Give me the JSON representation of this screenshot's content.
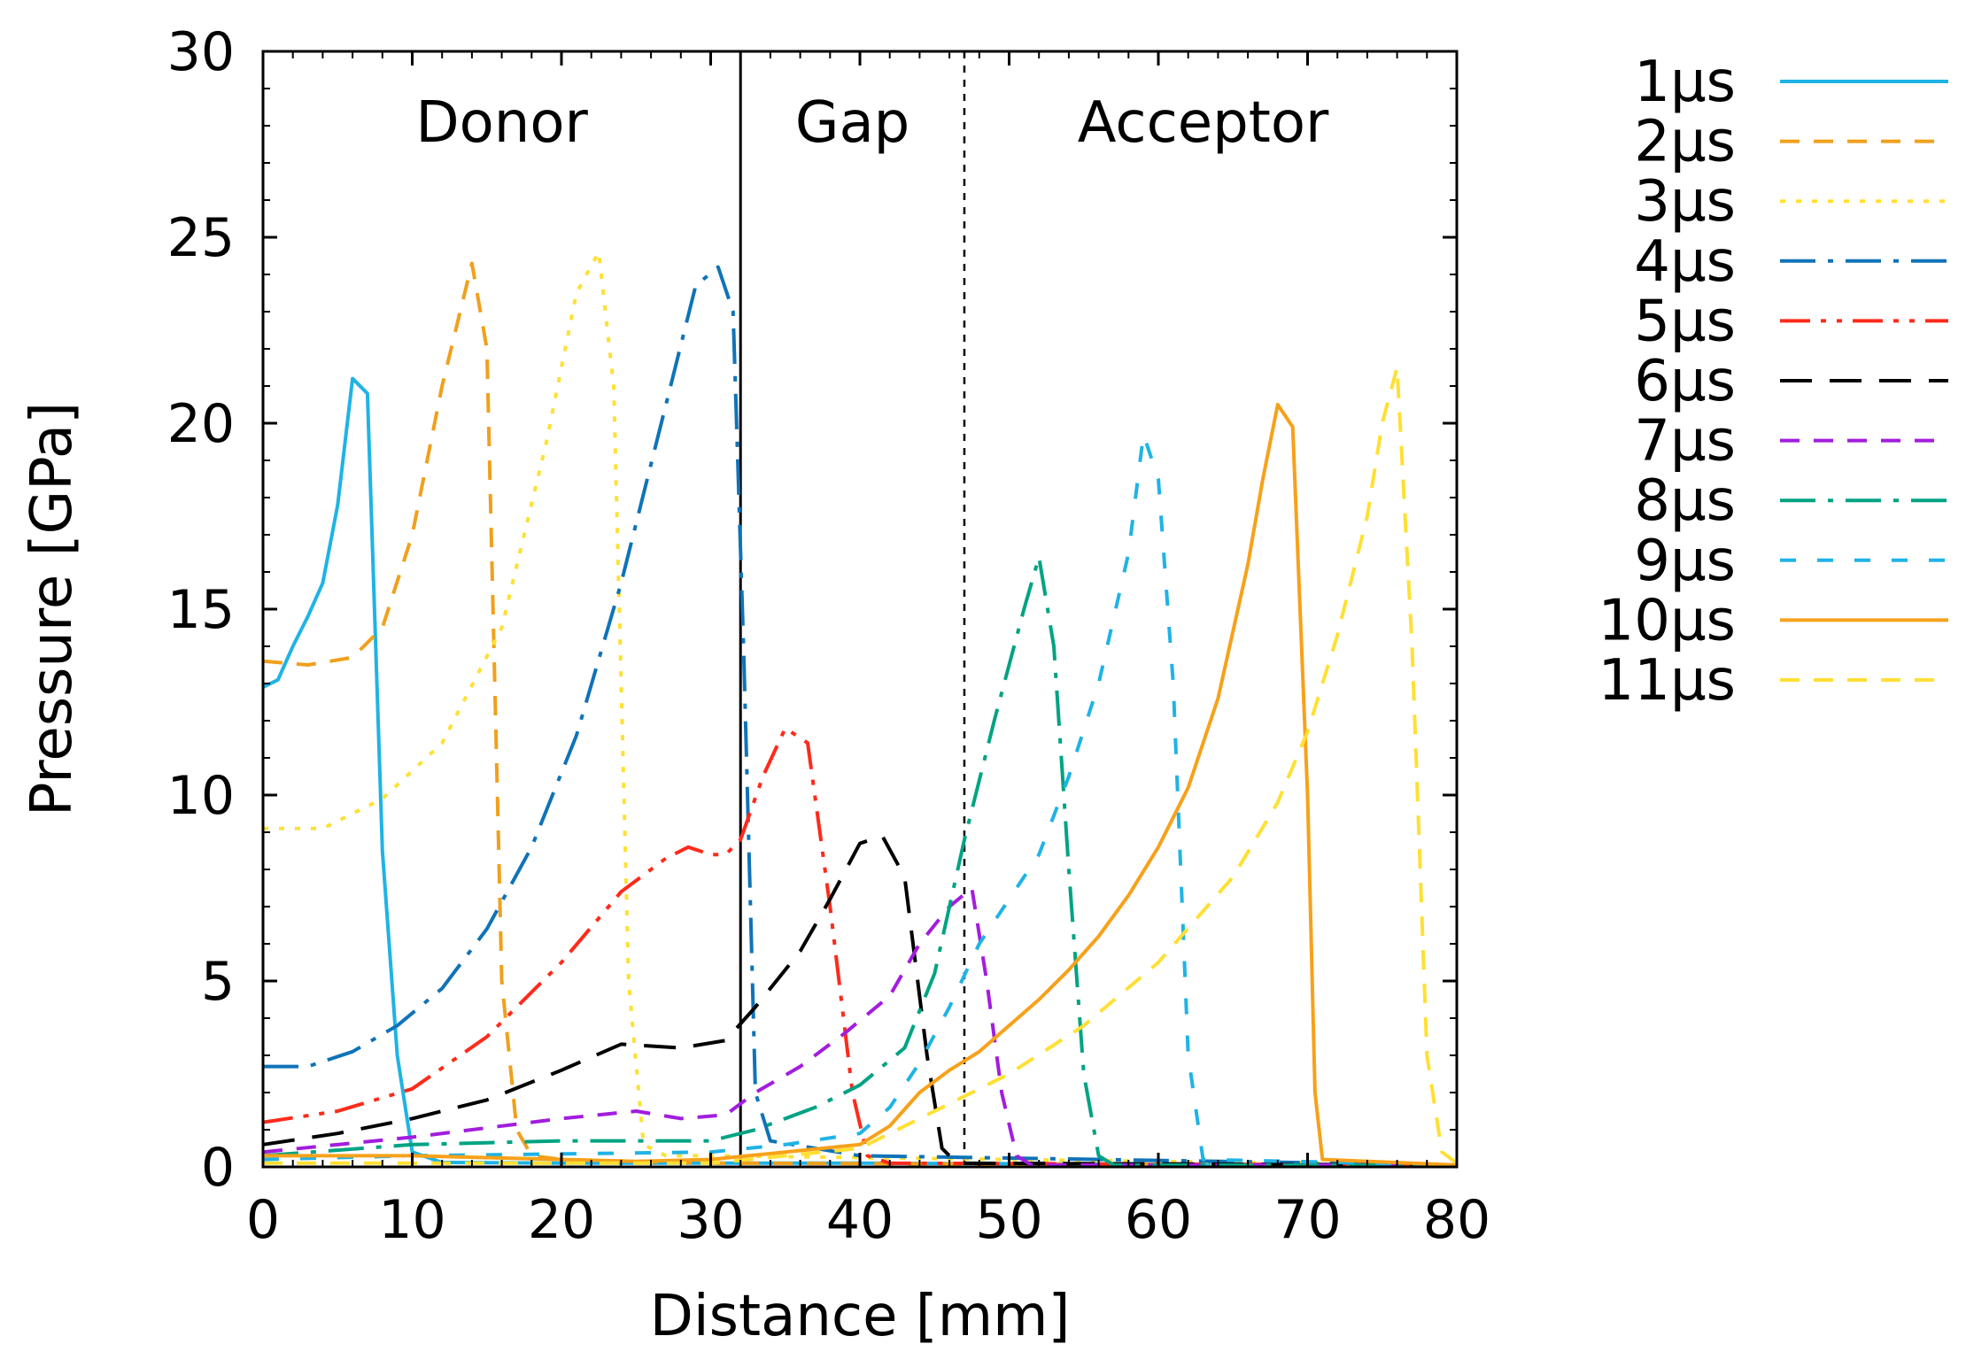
{
  "chart_data": {
    "type": "line",
    "title": "",
    "xlabel": "Distance [mm]",
    "ylabel": "Pressure [GPa]",
    "xlim": [
      0,
      80
    ],
    "ylim": [
      0,
      30
    ],
    "xticks": [
      0,
      10,
      20,
      30,
      40,
      50,
      60,
      70,
      80
    ],
    "yticks": [
      0,
      5,
      10,
      15,
      20,
      25,
      30
    ],
    "regions": [
      {
        "label": "Donor",
        "x": 16
      },
      {
        "label": "Gap",
        "x": 39.5
      },
      {
        "label": "Acceptor",
        "x": 63
      }
    ],
    "boundaries": [
      {
        "x": 32,
        "style": "solid"
      },
      {
        "x": 47,
        "style": "dotted"
      }
    ],
    "legend_position": "outside-right",
    "series": [
      {
        "name": "1μs",
        "color": "#1fb3e5",
        "dash": "solid",
        "x": [
          0,
          1,
          2,
          3,
          4,
          5,
          6,
          7,
          8,
          9,
          10,
          12,
          20,
          30,
          40,
          80
        ],
        "y": [
          12.9,
          13.1,
          14.0,
          14.8,
          15.7,
          17.8,
          21.2,
          20.8,
          8.5,
          3.0,
          0.4,
          0.12,
          0.1,
          0.1,
          0.1,
          0.05
        ]
      },
      {
        "name": "2μs",
        "color": "#f0a01c",
        "dash": "dash",
        "x": [
          0,
          3,
          6,
          8,
          10,
          12,
          14,
          15,
          16,
          17,
          18,
          20,
          30,
          80
        ],
        "y": [
          13.6,
          13.5,
          13.7,
          14.5,
          17.0,
          21.0,
          24.3,
          22.0,
          5.0,
          1.0,
          0.3,
          0.2,
          0.1,
          0.05
        ]
      },
      {
        "name": "3μs",
        "color": "#ffe033",
        "dash": "dot",
        "x": [
          0,
          4,
          8,
          12,
          16,
          19,
          21,
          22.5,
          23.5,
          24.5,
          25.5,
          27,
          30,
          80
        ],
        "y": [
          9.1,
          9.1,
          9.9,
          11.4,
          14.5,
          19.5,
          23.5,
          24.6,
          21.0,
          5.0,
          0.6,
          0.3,
          0.3,
          0.05
        ]
      },
      {
        "name": "4μs",
        "color": "#0f73b8",
        "dash": "dashdot",
        "x": [
          0,
          3,
          6,
          9,
          12,
          15,
          18,
          21,
          24,
          27,
          29,
          30.5,
          31.5,
          32.2,
          33,
          34,
          40,
          80
        ],
        "y": [
          2.7,
          2.7,
          3.1,
          3.8,
          4.8,
          6.4,
          8.6,
          11.6,
          15.7,
          20.5,
          23.7,
          24.2,
          23.0,
          14.0,
          2.0,
          0.7,
          0.3,
          0.05
        ]
      },
      {
        "name": "5μs",
        "color": "#ff2a1a",
        "dash": "dashdotdot",
        "x": [
          0,
          5,
          10,
          15,
          20,
          24,
          27,
          28.5,
          30,
          31,
          32,
          33.5,
          35,
          36.5,
          38,
          39.5,
          40.5,
          42,
          80
        ],
        "y": [
          1.2,
          1.5,
          2.1,
          3.5,
          5.5,
          7.4,
          8.3,
          8.6,
          8.4,
          8.4,
          8.8,
          10.5,
          11.8,
          11.4,
          7.0,
          2.0,
          0.3,
          0.1,
          0.05
        ]
      },
      {
        "name": "6μs",
        "color": "#000000",
        "dash": "longdash",
        "x": [
          0,
          5,
          10,
          15,
          20,
          24,
          28,
          31,
          33,
          36,
          38,
          40,
          41.5,
          43,
          44.5,
          45.5,
          46.5,
          80
        ],
        "y": [
          0.6,
          0.9,
          1.3,
          1.8,
          2.6,
          3.3,
          3.2,
          3.4,
          4.3,
          5.8,
          7.2,
          8.7,
          8.9,
          7.8,
          3.0,
          0.5,
          0.1,
          0.05
        ]
      },
      {
        "name": "7μs",
        "color": "#a21dde",
        "dash": "dash",
        "x": [
          0,
          10,
          20,
          25,
          28,
          31,
          33,
          36,
          39,
          42,
          44,
          46,
          47.5,
          48.5,
          49.5,
          50.5,
          51.5,
          80
        ],
        "y": [
          0.4,
          0.8,
          1.3,
          1.5,
          1.3,
          1.4,
          2.0,
          2.7,
          3.6,
          4.6,
          6.0,
          7.0,
          7.5,
          5.0,
          2.0,
          0.3,
          0.05,
          0.05
        ]
      },
      {
        "name": "8μs",
        "color": "#00a383",
        "dash": "dashdot",
        "x": [
          0,
          10,
          20,
          30,
          33,
          37,
          40,
          43,
          45,
          47,
          49,
          51,
          52,
          53,
          54,
          55,
          56,
          57,
          80
        ],
        "y": [
          0.3,
          0.6,
          0.7,
          0.7,
          1.0,
          1.6,
          2.2,
          3.2,
          5.2,
          8.8,
          12.0,
          15.0,
          16.4,
          14.0,
          8.0,
          2.5,
          0.3,
          0.05,
          0.05
        ]
      },
      {
        "name": "9μs",
        "color": "#1fb3e5",
        "dash": "shortdash",
        "x": [
          0,
          10,
          20,
          30,
          35,
          40,
          42,
          44,
          46,
          48,
          50,
          52,
          54,
          56,
          58,
          59,
          60,
          61,
          62,
          63,
          80
        ],
        "y": [
          0.2,
          0.3,
          0.35,
          0.4,
          0.6,
          0.9,
          1.6,
          2.8,
          4.3,
          6.0,
          7.2,
          8.4,
          10.5,
          13.0,
          16.5,
          19.7,
          18.5,
          13.0,
          3.0,
          0.2,
          0.05
        ]
      },
      {
        "name": "10μs",
        "color": "#f7a11a",
        "dash": "solid",
        "x": [
          0,
          10,
          20,
          25,
          30,
          35,
          40,
          42,
          44,
          46,
          48,
          50,
          52,
          54,
          56,
          58,
          60,
          62,
          64,
          66,
          67,
          68,
          69,
          70,
          70.5,
          71,
          80
        ],
        "y": [
          0.3,
          0.3,
          0.2,
          0.15,
          0.2,
          0.4,
          0.6,
          1.1,
          2.0,
          2.6,
          3.1,
          3.8,
          4.5,
          5.3,
          6.2,
          7.3,
          8.6,
          10.2,
          12.6,
          16.2,
          18.5,
          20.5,
          19.9,
          10.0,
          2.0,
          0.2,
          0.05
        ]
      },
      {
        "name": "11μs",
        "color": "#ffe033",
        "dash": "dash",
        "x": [
          0,
          20,
          30,
          40,
          45,
          50,
          55,
          60,
          65,
          68,
          70,
          72,
          74,
          75,
          76,
          77,
          78,
          79,
          80
        ],
        "y": [
          0.1,
          0.1,
          0.1,
          0.5,
          1.5,
          2.5,
          3.8,
          5.5,
          7.8,
          9.8,
          11.7,
          14.3,
          17.5,
          20.0,
          21.5,
          14.0,
          3.0,
          0.4,
          0.1
        ]
      }
    ]
  }
}
